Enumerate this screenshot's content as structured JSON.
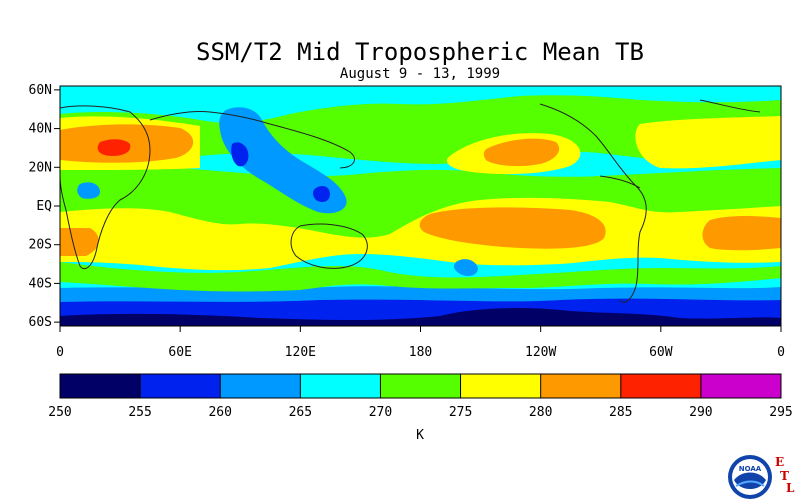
{
  "title": "SSM/T2 Mid Tropospheric Mean TB",
  "subtitle": "August 9 - 13, 1999",
  "map": {
    "lat_labels": [
      "60N",
      "40N",
      "20N",
      "EQ",
      "20S",
      "40S",
      "60S"
    ],
    "lat_values": [
      60,
      40,
      20,
      0,
      -20,
      -40,
      -60
    ],
    "lon_labels": [
      "0",
      "60E",
      "120E",
      "180",
      "120W",
      "60W",
      "0"
    ],
    "lon_values": [
      0,
      60,
      120,
      180,
      240,
      300,
      360
    ],
    "lat_range": [
      -62,
      62
    ],
    "lon_range": [
      0,
      360
    ]
  },
  "colorbar": {
    "unit": "K",
    "ticks": [
      "250",
      "255",
      "260",
      "265",
      "270",
      "275",
      "280",
      "285",
      "290",
      "295"
    ],
    "colors": [
      "#000066",
      "#0022ee",
      "#0099ff",
      "#00ffff",
      "#55ff00",
      "#ffff00",
      "#ff9900",
      "#ff2200",
      "#cc00cc"
    ]
  },
  "logo": {
    "noaa_text": "NOAA",
    "etl_letters": [
      "E",
      "T",
      "L"
    ],
    "etl_color": "#cc0000"
  },
  "colors": {
    "band_250": "#000066",
    "band_255": "#0022ee",
    "band_260": "#0099ff",
    "band_265": "#00ffff",
    "band_270": "#55ff00",
    "band_275": "#ffff00",
    "band_280": "#ff9900",
    "band_285": "#ff2200"
  }
}
